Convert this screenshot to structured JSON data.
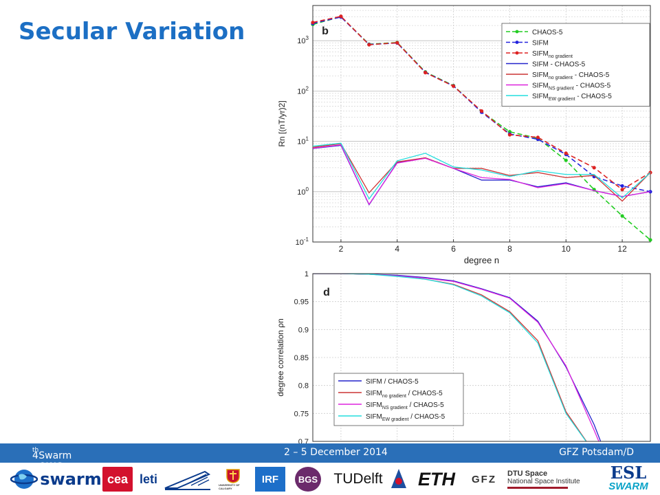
{
  "slide": {
    "title": "Secular Variation"
  },
  "footer": {
    "meeting_num": "4",
    "meeting_sup": "th",
    "meeting_rest": " Swarm QWG Meeting",
    "date": "2 – 5 December 2014",
    "place": "GFZ Potsdam/D"
  },
  "logos": {
    "swarm": "swarm",
    "cea": "cea",
    "leti": "leti",
    "irf": "IRF",
    "bgs": "BGS",
    "tudelft": "TUDelft",
    "eth": "ETH",
    "gfz": "GFZ",
    "dtu_line1": "DTU Space",
    "dtu_line2": "National Space Institute",
    "esl": "ESL",
    "esl_swarm": "SWARM",
    "calgary": "UNIVERSITY OF CALGARY",
    "colors": {
      "esa_blue": "#0b3b8c",
      "cea_red": "#d3112d",
      "bgs_purple": "#6b2a6b",
      "swarm_teal": "#0aa3c8"
    }
  },
  "chart_data": [
    {
      "type": "line",
      "panel_label": "b",
      "xlabel": "degree n",
      "ylabel": "Rn [(nT/yr)2]",
      "yscale": "log",
      "xlim": [
        1,
        13
      ],
      "ylim": [
        0.1,
        5000
      ],
      "x_ticks": [
        "2",
        "4",
        "6",
        "8",
        "10",
        "12"
      ],
      "y_ticks": [
        "10-1",
        "100",
        "101",
        "102",
        "103"
      ],
      "grid": true,
      "legend_position": "top-right",
      "x": [
        1,
        2,
        3,
        4,
        5,
        6,
        7,
        8,
        9,
        10,
        11,
        12,
        13
      ],
      "series": [
        {
          "name": "CHAOS-5",
          "name_sub": "",
          "name_tail": "",
          "color": "#22cc22",
          "dash": "dashed",
          "marker": true,
          "values": [
            2100,
            3000,
            850,
            920,
            240,
            128,
            39,
            15.5,
            11.5,
            4.2,
            1.1,
            0.33,
            0.11
          ]
        },
        {
          "name": "SIFM",
          "name_sub": "",
          "name_tail": "",
          "color": "#2222dd",
          "dash": "dashed",
          "marker": true,
          "values": [
            2200,
            2950,
            840,
            900,
            235,
            126,
            38,
            14,
            11,
            5.5,
            2.0,
            1.3,
            1.0
          ]
        },
        {
          "name": "SIFM",
          "name_sub": "no gradient",
          "name_tail": "",
          "color": "#dd2222",
          "dash": "dashed",
          "marker": true,
          "values": [
            2300,
            3050,
            830,
            910,
            232,
            125,
            40,
            13.5,
            12,
            5.8,
            3.0,
            1.1,
            2.4
          ]
        },
        {
          "name": "SIFM - CHAOS-5",
          "name_sub": "",
          "name_tail": "",
          "color": "#2222cc",
          "dash": "solid",
          "marker": false,
          "values": [
            7.2,
            8.3,
            0.55,
            3.8,
            4.7,
            2.9,
            1.7,
            1.7,
            1.25,
            1.5,
            1.05,
            0.8,
            1.0
          ]
        },
        {
          "name": "SIFM",
          "name_sub": "no gradient",
          "name_tail": " - CHAOS-5",
          "color": "#cc3333",
          "dash": "solid",
          "marker": false,
          "values": [
            7.6,
            9.0,
            0.95,
            3.9,
            4.7,
            2.9,
            2.9,
            2.1,
            2.4,
            1.9,
            2.1,
            0.65,
            2.4
          ]
        },
        {
          "name": "SIFM",
          "name_sub": "NS gradient",
          "name_tail": " - CHAOS-5",
          "color": "#dd22dd",
          "dash": "solid",
          "marker": false,
          "values": [
            7.3,
            8.5,
            0.56,
            3.7,
            4.6,
            2.9,
            1.9,
            1.75,
            1.2,
            1.45,
            1.05,
            0.8,
            1.0
          ]
        },
        {
          "name": "SIFM",
          "name_sub": "EW gradient",
          "name_tail": " - CHAOS-5",
          "color": "#22dddd",
          "dash": "solid",
          "marker": false,
          "values": [
            8.0,
            9.2,
            0.72,
            4.1,
            5.8,
            3.1,
            2.7,
            2.0,
            2.6,
            2.2,
            2.2,
            0.75,
            2.4
          ]
        }
      ]
    },
    {
      "type": "line",
      "panel_label": "d",
      "xlabel": "",
      "ylabel": "degree correlation ρn",
      "xlim": [
        1,
        13
      ],
      "ylim": [
        0.7,
        1
      ],
      "y_ticks": [
        "1",
        "0.95",
        "0.9",
        "0.85",
        "0.8",
        "0.75",
        "0.7"
      ],
      "grid": true,
      "legend_position": "bottom-left",
      "x": [
        1,
        2,
        3,
        4,
        5,
        6,
        7,
        8,
        9,
        10,
        11,
        12
      ],
      "series": [
        {
          "name": "SIFM / CHAOS-5",
          "name_sub": "",
          "name_tail": "",
          "color": "#2222cc",
          "values": [
            1.0,
            1.0,
            0.999,
            0.997,
            0.993,
            0.987,
            0.973,
            0.957,
            0.915,
            0.833,
            0.73,
            0.6
          ]
        },
        {
          "name": "SIFM",
          "name_sub": "no gradient",
          "name_tail": " / CHAOS-5",
          "color": "#cc3333",
          "values": [
            1.0,
            1.0,
            0.999,
            0.996,
            0.99,
            0.981,
            0.962,
            0.932,
            0.88,
            0.753,
            0.68,
            0.6
          ]
        },
        {
          "name": "SIFM",
          "name_sub": "NS gradient",
          "name_tail": " / CHAOS-5",
          "color": "#dd22dd",
          "values": [
            1.0,
            1.0,
            0.999,
            0.996,
            0.992,
            0.986,
            0.972,
            0.956,
            0.913,
            0.835,
            0.72,
            0.6
          ]
        },
        {
          "name": "SIFM",
          "name_sub": "EW gradient",
          "name_tail": " / CHAOS-5",
          "color": "#22dddd",
          "values": [
            1.0,
            1.0,
            0.999,
            0.995,
            0.99,
            0.98,
            0.96,
            0.93,
            0.876,
            0.75,
            0.68,
            0.6
          ]
        }
      ]
    }
  ]
}
